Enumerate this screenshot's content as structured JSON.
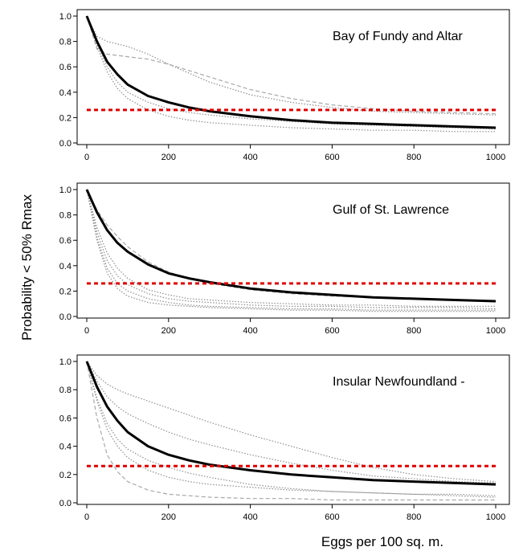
{
  "figure": {
    "ylabel": "Probability < 50% Rmax",
    "xlabel": "Eggs per 100 sq. m."
  },
  "chart_data": [
    {
      "type": "line",
      "title": "Bay of Fundy and Altar",
      "xlabel": "Eggs per 100 sq. m.",
      "ylabel": "Probability < 50% Rmax",
      "xlim": [
        0,
        1000
      ],
      "ylim": [
        0,
        1
      ],
      "x_ticks": [
        "0",
        "200",
        "400",
        "600",
        "800",
        "1000"
      ],
      "y_ticks": [
        "0.0",
        "0.2",
        "0.4",
        "0.6",
        "0.8",
        "1.0"
      ],
      "grid": false,
      "reference_line": {
        "y": 0.26,
        "color": "#e00000",
        "style": "dashed"
      },
      "x": [
        0,
        25,
        50,
        75,
        100,
        150,
        200,
        250,
        300,
        400,
        500,
        600,
        700,
        800,
        900,
        1000
      ],
      "series": [
        {
          "style": "main",
          "values": [
            1.0,
            0.8,
            0.64,
            0.54,
            0.46,
            0.37,
            0.32,
            0.28,
            0.25,
            0.21,
            0.18,
            0.16,
            0.15,
            0.14,
            0.13,
            0.12
          ]
        },
        {
          "style": "dotted",
          "values": [
            1.0,
            0.84,
            0.8,
            0.78,
            0.76,
            0.7,
            0.62,
            0.55,
            0.48,
            0.38,
            0.32,
            0.28,
            0.25,
            0.24,
            0.23,
            0.22
          ]
        },
        {
          "style": "dashed",
          "values": [
            1.0,
            0.74,
            0.7,
            0.69,
            0.68,
            0.66,
            0.62,
            0.57,
            0.52,
            0.42,
            0.35,
            0.3,
            0.27,
            0.25,
            0.24,
            0.23
          ]
        },
        {
          "style": "dotted",
          "values": [
            1.0,
            0.78,
            0.6,
            0.48,
            0.4,
            0.32,
            0.27,
            0.24,
            0.22,
            0.19,
            0.17,
            0.15,
            0.14,
            0.13,
            0.12,
            0.11
          ]
        },
        {
          "style": "dotted",
          "values": [
            1.0,
            0.76,
            0.56,
            0.43,
            0.35,
            0.26,
            0.21,
            0.18,
            0.16,
            0.14,
            0.12,
            0.11,
            0.1,
            0.1,
            0.09,
            0.09
          ]
        }
      ]
    },
    {
      "type": "line",
      "title": "Gulf of St. Lawrence",
      "xlabel": "Eggs per 100 sq. m.",
      "ylabel": "Probability < 50% Rmax",
      "xlim": [
        0,
        1000
      ],
      "ylim": [
        0,
        1
      ],
      "x_ticks": [
        "0",
        "200",
        "400",
        "600",
        "800",
        "1000"
      ],
      "y_ticks": [
        "0.0",
        "0.2",
        "0.4",
        "0.6",
        "0.8",
        "1.0"
      ],
      "grid": false,
      "reference_line": {
        "y": 0.26,
        "color": "#e00000",
        "style": "dashed"
      },
      "x": [
        0,
        25,
        50,
        75,
        100,
        150,
        200,
        250,
        300,
        400,
        500,
        600,
        700,
        800,
        900,
        1000
      ],
      "series": [
        {
          "style": "main",
          "values": [
            1.0,
            0.82,
            0.68,
            0.58,
            0.51,
            0.41,
            0.34,
            0.3,
            0.27,
            0.22,
            0.19,
            0.17,
            0.15,
            0.14,
            0.13,
            0.12
          ]
        },
        {
          "style": "dashed",
          "values": [
            1.0,
            0.84,
            0.72,
            0.63,
            0.55,
            0.43,
            0.35,
            0.3,
            0.26,
            0.21,
            0.18,
            0.16,
            0.15,
            0.14,
            0.13,
            0.12
          ]
        },
        {
          "style": "dotted",
          "values": [
            1.0,
            0.7,
            0.5,
            0.38,
            0.3,
            0.21,
            0.17,
            0.14,
            0.13,
            0.11,
            0.1,
            0.09,
            0.09,
            0.08,
            0.08,
            0.08
          ]
        },
        {
          "style": "dotted",
          "values": [
            1.0,
            0.66,
            0.44,
            0.32,
            0.25,
            0.18,
            0.14,
            0.12,
            0.11,
            0.09,
            0.08,
            0.08,
            0.07,
            0.07,
            0.07,
            0.06
          ]
        },
        {
          "style": "dotted",
          "values": [
            1.0,
            0.62,
            0.38,
            0.26,
            0.2,
            0.14,
            0.11,
            0.09,
            0.08,
            0.07,
            0.06,
            0.06,
            0.05,
            0.05,
            0.05,
            0.05
          ]
        },
        {
          "style": "dotted",
          "values": [
            1.0,
            0.6,
            0.34,
            0.22,
            0.16,
            0.11,
            0.09,
            0.08,
            0.07,
            0.06,
            0.05,
            0.05,
            0.04,
            0.04,
            0.04,
            0.04
          ]
        }
      ]
    },
    {
      "type": "line",
      "title": "Insular Newfoundland -",
      "xlabel": "Eggs per 100 sq. m.",
      "ylabel": "Probability < 50% Rmax",
      "xlim": [
        0,
        1000
      ],
      "ylim": [
        0,
        1
      ],
      "x_ticks": [
        "0",
        "200",
        "400",
        "600",
        "800",
        "1000"
      ],
      "y_ticks": [
        "0.0",
        "0.2",
        "0.4",
        "0.6",
        "0.8",
        "1.0"
      ],
      "grid": false,
      "reference_line": {
        "y": 0.26,
        "color": "#e00000",
        "style": "dashed"
      },
      "x": [
        0,
        25,
        50,
        75,
        100,
        150,
        200,
        250,
        300,
        400,
        500,
        600,
        700,
        800,
        900,
        1000
      ],
      "series": [
        {
          "style": "main",
          "values": [
            1.0,
            0.82,
            0.68,
            0.58,
            0.5,
            0.4,
            0.34,
            0.3,
            0.27,
            0.23,
            0.2,
            0.18,
            0.16,
            0.15,
            0.14,
            0.13
          ]
        },
        {
          "style": "dotted",
          "values": [
            1.0,
            0.9,
            0.84,
            0.8,
            0.77,
            0.72,
            0.67,
            0.62,
            0.57,
            0.48,
            0.4,
            0.32,
            0.25,
            0.2,
            0.17,
            0.15
          ]
        },
        {
          "style": "dotted",
          "values": [
            1.0,
            0.86,
            0.75,
            0.68,
            0.63,
            0.56,
            0.5,
            0.45,
            0.41,
            0.34,
            0.28,
            0.23,
            0.19,
            0.17,
            0.15,
            0.14
          ]
        },
        {
          "style": "dotted",
          "values": [
            1.0,
            0.72,
            0.52,
            0.4,
            0.32,
            0.23,
            0.18,
            0.15,
            0.13,
            0.11,
            0.09,
            0.08,
            0.07,
            0.06,
            0.06,
            0.05
          ]
        },
        {
          "style": "dashed",
          "values": [
            1.0,
            0.6,
            0.34,
            0.22,
            0.15,
            0.09,
            0.06,
            0.05,
            0.04,
            0.03,
            0.03,
            0.02,
            0.02,
            0.02,
            0.02,
            0.02
          ]
        },
        {
          "style": "dotted",
          "values": [
            1.0,
            0.74,
            0.56,
            0.45,
            0.38,
            0.3,
            0.25,
            0.21,
            0.18,
            0.13,
            0.1,
            0.08,
            0.07,
            0.06,
            0.05,
            0.04
          ]
        }
      ]
    }
  ]
}
